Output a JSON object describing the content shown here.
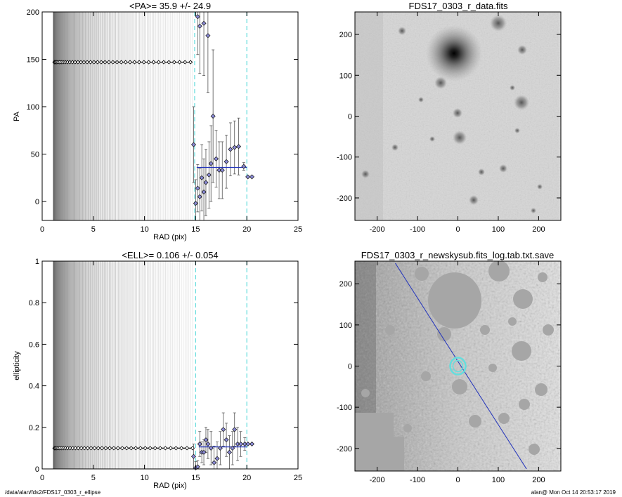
{
  "footer": {
    "left": "/data/alan/fds2/FDS17_0303_r_ellipse",
    "right": "alan@  Mon Oct 14 20:53:17 2019"
  },
  "colors": {
    "axis": "#000000",
    "cyan": "#66dddd",
    "blue": "#2233bb",
    "point_fill": "#8a8ad8"
  },
  "chart_data": [
    {
      "type": "scatter",
      "title": "<PA>=  35.9 +/-  24.9",
      "xlabel": "RAD (pix)",
      "ylabel": "PA",
      "xlim": [
        0,
        25
      ],
      "ylim": [
        -20,
        200
      ],
      "xticks": [
        0,
        5,
        10,
        15,
        20,
        25
      ],
      "yticks": [
        0,
        50,
        100,
        150,
        200
      ],
      "constant_level": 147,
      "constant_x_range": [
        1.2,
        14.5
      ],
      "vertical_error_lines_x_range": [
        1.1,
        14.7
      ],
      "cyan_dashed_x": [
        14.9,
        20.0
      ],
      "mean_line": {
        "x": [
          15.1,
          20.0
        ],
        "y": 35.9
      },
      "points": [
        {
          "x": 14.8,
          "y": 60,
          "err": 40
        },
        {
          "x": 15.0,
          "y": -2,
          "err": 25
        },
        {
          "x": 15.2,
          "y": 195,
          "err": 40
        },
        {
          "x": 15.4,
          "y": 185,
          "err": 50
        },
        {
          "x": 15.2,
          "y": 14,
          "err": 25
        },
        {
          "x": 15.4,
          "y": 5,
          "err": 30
        },
        {
          "x": 15.6,
          "y": 25,
          "err": 35
        },
        {
          "x": 15.8,
          "y": 188,
          "err": 55
        },
        {
          "x": 15.8,
          "y": 10,
          "err": 35
        },
        {
          "x": 16.0,
          "y": 20,
          "err": 35
        },
        {
          "x": 16.2,
          "y": 175,
          "err": 60
        },
        {
          "x": 16.3,
          "y": 28,
          "err": 35
        },
        {
          "x": 16.5,
          "y": 40,
          "err": 40
        },
        {
          "x": 16.7,
          "y": 90,
          "err": 70
        },
        {
          "x": 17.0,
          "y": 45,
          "err": 30
        },
        {
          "x": 17.3,
          "y": 33,
          "err": 30
        },
        {
          "x": 17.6,
          "y": 33,
          "err": 30
        },
        {
          "x": 18.0,
          "y": 42,
          "err": 28
        },
        {
          "x": 18.4,
          "y": 55,
          "err": 28
        },
        {
          "x": 18.8,
          "y": 57,
          "err": 28
        },
        {
          "x": 19.2,
          "y": 58,
          "err": 30
        },
        {
          "x": 19.7,
          "y": 37,
          "err": 4
        },
        {
          "x": 20.1,
          "y": 26,
          "err": 0
        },
        {
          "x": 20.5,
          "y": 26,
          "err": 0
        }
      ]
    },
    {
      "type": "image",
      "title": "FDS17_0303_r_data.fits",
      "xlim": [
        -255,
        255
      ],
      "ylim": [
        -255,
        255
      ],
      "xticks": [
        -200,
        -100,
        0,
        100,
        200
      ],
      "yticks": [
        -200,
        -100,
        0,
        100,
        200
      ]
    },
    {
      "type": "scatter",
      "title": "<ELL>= 0.106 +/-  0.054",
      "xlabel": "RAD (pix)",
      "ylabel": "ellipticity",
      "xlim": [
        0,
        25
      ],
      "ylim": [
        0.0,
        1.0
      ],
      "xticks": [
        0,
        5,
        10,
        15,
        20,
        25
      ],
      "yticks": [
        0.0,
        0.2,
        0.4,
        0.6,
        0.8,
        1.0
      ],
      "constant_level": 0.1,
      "constant_x_range": [
        1.2,
        14.7
      ],
      "vertical_error_lines_x_range": [
        1.1,
        14.7
      ],
      "cyan_dashed_x": [
        15.0,
        20.0
      ],
      "mean_line": {
        "x": [
          15.3,
          20.0
        ],
        "y": 0.106
      },
      "points": [
        {
          "x": 14.8,
          "y": 0.06,
          "err": 0.06
        },
        {
          "x": 15.0,
          "y": 0.005,
          "err": 0.03
        },
        {
          "x": 15.2,
          "y": 0.01,
          "err": 0.03
        },
        {
          "x": 15.4,
          "y": 0.12,
          "err": 0.06
        },
        {
          "x": 15.6,
          "y": 0.08,
          "err": 0.05
        },
        {
          "x": 15.8,
          "y": 0.08,
          "err": 0.06
        },
        {
          "x": 16.0,
          "y": 0.14,
          "err": 0.06
        },
        {
          "x": 16.2,
          "y": 0.12,
          "err": 0.07
        },
        {
          "x": 16.5,
          "y": 0.1,
          "err": 0.08
        },
        {
          "x": 16.8,
          "y": 0.03,
          "err": 0.08
        },
        {
          "x": 17.1,
          "y": 0.05,
          "err": 0.08
        },
        {
          "x": 17.4,
          "y": 0.1,
          "err": 0.08
        },
        {
          "x": 17.7,
          "y": 0.19,
          "err": 0.08
        },
        {
          "x": 18.0,
          "y": 0.14,
          "err": 0.08
        },
        {
          "x": 18.3,
          "y": 0.08,
          "err": 0.08
        },
        {
          "x": 18.6,
          "y": 0.1,
          "err": 0.08
        },
        {
          "x": 18.8,
          "y": 0.19,
          "err": 0.08
        },
        {
          "x": 19.1,
          "y": 0.12,
          "err": 0.08
        },
        {
          "x": 19.4,
          "y": 0.12,
          "err": 0.06
        },
        {
          "x": 19.8,
          "y": 0.12,
          "err": 0.03
        },
        {
          "x": 20.1,
          "y": 0.12,
          "err": 0.0
        },
        {
          "x": 20.5,
          "y": 0.12,
          "err": 0.0
        }
      ]
    },
    {
      "type": "image",
      "title": "FDS17_0303_r_newskysub.fits_log.tab.txt.save",
      "xlim": [
        -255,
        255
      ],
      "ylim": [
        -255,
        255
      ],
      "xticks": [
        -200,
        -100,
        0,
        100,
        200
      ],
      "yticks": [
        -200,
        -100,
        0,
        100,
        200
      ],
      "overlay_line": {
        "x": [
          -155,
          170
        ],
        "y": [
          250,
          -250
        ]
      },
      "ellipse_center": [
        0,
        0
      ]
    }
  ]
}
